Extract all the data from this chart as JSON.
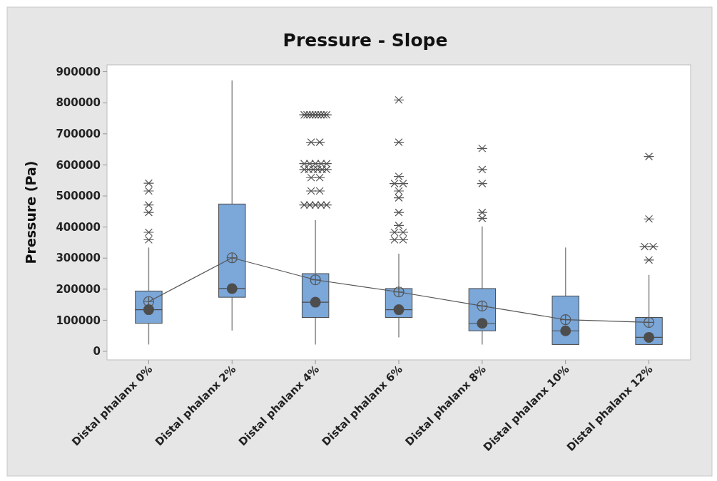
{
  "chart_data": {
    "type": "box",
    "title": "Pressure - Slope",
    "ylabel": "Pressure (Pa)",
    "categories": [
      "Distal phalanx 0%",
      "Distal phalanx 2%",
      "Distal phalanx 4%",
      "Distal phalanx 6%",
      "Distal phalanx 8%",
      "Distal phalanx 10%",
      "Distal phalanx 12%"
    ],
    "color": "#7ba7d9",
    "boxes": [
      {
        "low": 22000,
        "q1": 90000,
        "median": 134000,
        "q3": 194000,
        "high": 334000,
        "mean": 160000,
        "outliers": [
          359000,
          383000,
          447000,
          471000,
          516000,
          541000
        ]
      },
      {
        "low": 67000,
        "q1": 174000,
        "median": 202000,
        "q3": 474000,
        "high": 872000,
        "mean": 301000
      },
      {
        "low": 22000,
        "q1": 109000,
        "median": 158000,
        "q3": 250000,
        "high": 422000,
        "mean": 230000,
        "outliers": [
          471000,
          471000,
          471000,
          471000,
          471000,
          516000,
          516000,
          559000,
          559000,
          585000,
          585000,
          585000,
          585000,
          585000,
          585000,
          604000,
          604000,
          604000,
          604000,
          604000,
          673000,
          673000,
          761000,
          761000,
          761000,
          761000,
          761000,
          761000,
          761000,
          761000,
          761000
        ]
      },
      {
        "low": 45000,
        "q1": 109000,
        "median": 134000,
        "q3": 202000,
        "high": 314000,
        "mean": 191000,
        "outliers": [
          359000,
          359000,
          383000,
          383000,
          405000,
          447000,
          494000,
          516000,
          540000,
          540000,
          563000,
          673000,
          809000
        ]
      },
      {
        "low": 22000,
        "q1": 66000,
        "median": 90000,
        "q3": 202000,
        "high": 402000,
        "mean": 146000,
        "outliers": [
          428000,
          447000,
          540000,
          585000,
          653000
        ]
      },
      {
        "low": 22000,
        "q1": 22000,
        "median": 66000,
        "q3": 178000,
        "high": 334000,
        "mean": 102000
      },
      {
        "low": 22000,
        "q1": 22000,
        "median": 45000,
        "q3": 109000,
        "high": 246000,
        "mean": 93000,
        "outliers": [
          294000,
          337000,
          337000,
          426000,
          627000
        ]
      }
    ],
    "series": [
      {
        "type": "line",
        "color": "#555555",
        "marker": "none",
        "values": [
          160000,
          301000,
          230000,
          191000,
          146000,
          102000,
          93000
        ]
      },
      {
        "type": "scatter",
        "color": "#4d4d4d",
        "marker": "circle",
        "x": [
          "Distal phalanx 0%",
          "Distal phalanx 2%",
          "Distal phalanx 4%",
          "Distal phalanx 6%",
          "Distal phalanx 8%",
          "Distal phalanx 10%",
          "Distal phalanx 12%"
        ],
        "values": [
          134000,
          202000,
          158000,
          134000,
          90000,
          66000,
          45000
        ]
      }
    ],
    "ylim": [
      -27500,
      922000
    ],
    "yticks": [
      0,
      100000,
      200000,
      300000,
      400000,
      500000,
      600000,
      700000,
      800000,
      900000
    ],
    "grid": false
  }
}
